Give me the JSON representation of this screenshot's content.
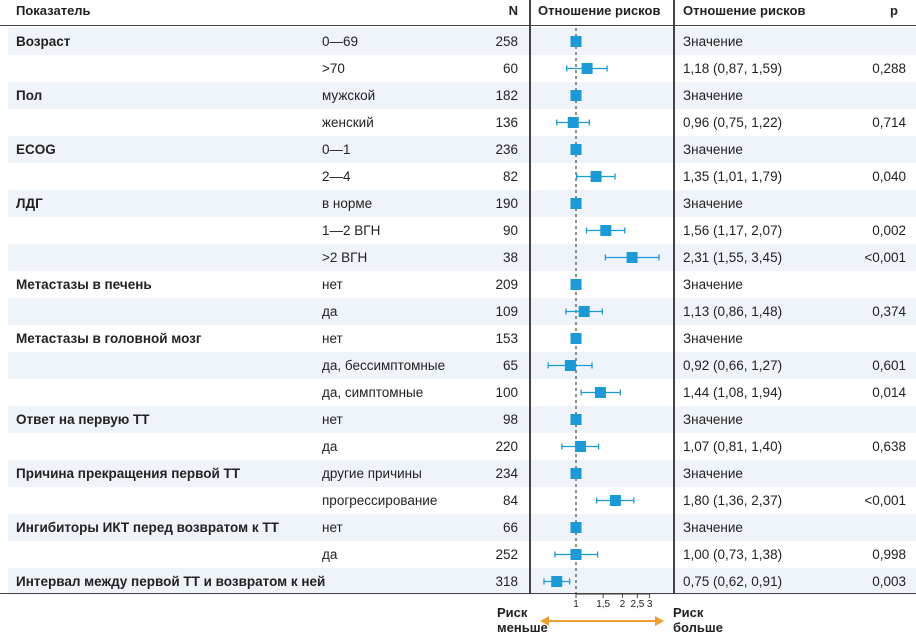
{
  "headers": {
    "indicator": "Показатель",
    "n": "N",
    "plot": "Отношение рисков",
    "hr": "Отношение рисков",
    "p": "p"
  },
  "rows": [
    {
      "category": "Возраст",
      "sub": "0—69",
      "n": "258",
      "hr_text": "Значение",
      "p": ""
    },
    {
      "category": "",
      "sub": ">70",
      "n": "60",
      "hr_text": "1,18 (0,87, 1,59)",
      "p": "0,288"
    },
    {
      "category": "Пол",
      "sub": "мужской",
      "n": "182",
      "hr_text": "Значение",
      "p": ""
    },
    {
      "category": "",
      "sub": "женский",
      "n": "136",
      "hr_text": "0,96 (0,75, 1,22)",
      "p": "0,714"
    },
    {
      "category": "ECOG",
      "sub": "0—1",
      "n": "236",
      "hr_text": "Значение",
      "p": ""
    },
    {
      "category": "",
      "sub": "2—4",
      "n": "82",
      "hr_text": "1,35 (1,01, 1,79)",
      "p": "0,040"
    },
    {
      "category": "ЛДГ",
      "sub": "в норме",
      "n": "190",
      "hr_text": "Значение",
      "p": ""
    },
    {
      "category": "",
      "sub": "1—2 ВГН",
      "n": "90",
      "hr_text": "1,56 (1,17, 2,07)",
      "p": "0,002"
    },
    {
      "category": "",
      "sub": ">2 ВГН",
      "n": "38",
      "hr_text": "2,31 (1,55, 3,45)",
      "p": "<0,001"
    },
    {
      "category": "Метастазы в печень",
      "sub": "нет",
      "n": "209",
      "hr_text": "Значение",
      "p": ""
    },
    {
      "category": "",
      "sub": "да",
      "n": "109",
      "hr_text": "1,13 (0,86, 1,48)",
      "p": "0,374"
    },
    {
      "category": "Метастазы в головной мозг",
      "sub": "нет",
      "n": "153",
      "hr_text": "Значение",
      "p": ""
    },
    {
      "category": "",
      "sub": "да, бессимптомные",
      "n": "65",
      "hr_text": "0,92 (0,66, 1,27)",
      "p": "0,601"
    },
    {
      "category": "",
      "sub": "да, симптомные",
      "n": "100",
      "hr_text": "1,44 (1,08, 1,94)",
      "p": "0,014"
    },
    {
      "category": "Ответ на первую ТТ",
      "sub": "нет",
      "n": "98",
      "hr_text": "Значение",
      "p": ""
    },
    {
      "category": "",
      "sub": "да",
      "n": "220",
      "hr_text": "1,07 (0,81, 1,40)",
      "p": "0,638"
    },
    {
      "category": "Причина прекращения первой ТТ",
      "sub": "другие причины",
      "n": "234",
      "hr_text": "Значение",
      "p": ""
    },
    {
      "category": "",
      "sub": "прогрессирование",
      "n": "84",
      "hr_text": "1,80 (1,36, 2,37)",
      "p": "<0,001"
    },
    {
      "category": "Ингибиторы ИКТ перед возвратом к ТТ",
      "sub": "нет",
      "n": "66",
      "hr_text": "Значение",
      "p": ""
    },
    {
      "category": "",
      "sub": "да",
      "n": "252",
      "hr_text": "1,00 (0,73, 1,38)",
      "p": "0,998"
    },
    {
      "category": "Интервал между первой ТТ и возвратом к ней",
      "sub": "",
      "n": "318",
      "hr_text": "0,75 (0,62, 0,91)",
      "p": "0,003"
    }
  ],
  "legend": {
    "left_line1": "Риск",
    "left_line2": "меньше",
    "right_line1": "Риск",
    "right_line2": "больше"
  },
  "chart_data": {
    "type": "forest",
    "scale": "log",
    "reference": 1,
    "xticks": [
      "1",
      "1,5",
      "2",
      "2,5",
      "3"
    ],
    "xtick_values": [
      1,
      1.5,
      2,
      2.5,
      3
    ],
    "points": [
      {
        "hr": 1,
        "lo": null,
        "hi": null
      },
      {
        "hr": 1.18,
        "lo": 0.87,
        "hi": 1.59
      },
      {
        "hr": 1,
        "lo": null,
        "hi": null
      },
      {
        "hr": 0.96,
        "lo": 0.75,
        "hi": 1.22
      },
      {
        "hr": 1,
        "lo": null,
        "hi": null
      },
      {
        "hr": 1.35,
        "lo": 1.01,
        "hi": 1.79
      },
      {
        "hr": 1,
        "lo": null,
        "hi": null
      },
      {
        "hr": 1.56,
        "lo": 1.17,
        "hi": 2.07
      },
      {
        "hr": 2.31,
        "lo": 1.55,
        "hi": 3.45
      },
      {
        "hr": 1,
        "lo": null,
        "hi": null
      },
      {
        "hr": 1.13,
        "lo": 0.86,
        "hi": 1.48
      },
      {
        "hr": 1,
        "lo": null,
        "hi": null
      },
      {
        "hr": 0.92,
        "lo": 0.66,
        "hi": 1.27
      },
      {
        "hr": 1.44,
        "lo": 1.08,
        "hi": 1.94
      },
      {
        "hr": 1,
        "lo": null,
        "hi": null
      },
      {
        "hr": 1.07,
        "lo": 0.81,
        "hi": 1.4
      },
      {
        "hr": 1,
        "lo": null,
        "hi": null
      },
      {
        "hr": 1.8,
        "lo": 1.36,
        "hi": 2.37
      },
      {
        "hr": 1,
        "lo": null,
        "hi": null
      },
      {
        "hr": 1.0,
        "lo": 0.73,
        "hi": 1.38
      },
      {
        "hr": 0.75,
        "lo": 0.62,
        "hi": 0.91
      }
    ],
    "colors": {
      "marker": "#1a9ad6",
      "arrow": "#f0a030",
      "stripe": "#eef4fa"
    }
  }
}
